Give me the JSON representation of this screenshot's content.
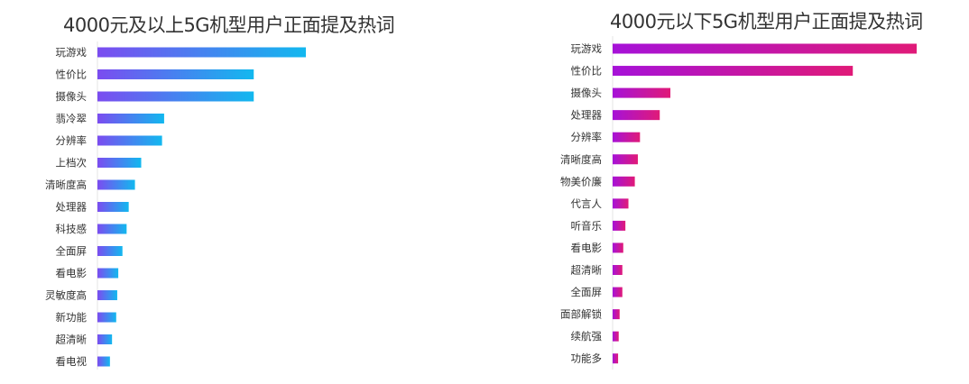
{
  "colors": {
    "left_gradient": [
      "#7b4cf0",
      "#12b8ef"
    ],
    "right_gradient": [
      "#a612d8",
      "#e01a78"
    ],
    "axis": "#e6e6e6",
    "text": "#333333"
  },
  "chart_data": [
    {
      "type": "bar",
      "orientation": "horizontal",
      "title": "4000元及以上5G机型用户正面提及热词",
      "categories": [
        "玩游戏",
        "性价比",
        "摄像头",
        "翡冷翠",
        "分辨率",
        "上档次",
        "清晰度高",
        "处理器",
        "科技感",
        "全面屏",
        "看电影",
        "灵敏度高",
        "新功能",
        "超清晰",
        "看电视"
      ],
      "values": [
        100,
        75,
        75,
        32,
        31,
        21,
        18,
        15,
        14,
        12,
        10,
        9.5,
        9,
        7,
        6
      ],
      "xlim": [
        0,
        100
      ],
      "grid": false
    },
    {
      "type": "bar",
      "orientation": "horizontal",
      "title": "4000元以下5G机型用户正面提及热词",
      "categories": [
        "玩游戏",
        "性价比",
        "摄像头",
        "处理器",
        "分辨率",
        "清晰度高",
        "物美价廉",
        "代言人",
        "听音乐",
        "看电影",
        "超清晰",
        "全面屏",
        "面部解锁",
        "续航强",
        "功能多"
      ],
      "values": [
        100,
        79,
        19,
        15.5,
        9,
        8.3,
        7.3,
        5.2,
        4.2,
        3.5,
        3.2,
        3.2,
        2.3,
        2,
        1.8
      ],
      "xlim": [
        0,
        100
      ],
      "grid": false
    }
  ]
}
